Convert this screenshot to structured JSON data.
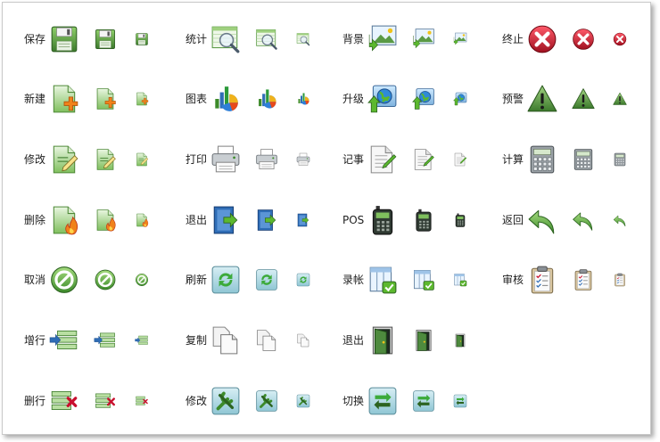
{
  "columns": [
    {
      "items": [
        {
          "label": "保存",
          "icon": "save-icon"
        },
        {
          "label": "新建",
          "icon": "new-document-icon"
        },
        {
          "label": "修改",
          "icon": "edit-document-icon"
        },
        {
          "label": "删除",
          "icon": "delete-document-icon"
        },
        {
          "label": "取消",
          "icon": "cancel-icon"
        },
        {
          "label": "增行",
          "icon": "add-row-icon"
        },
        {
          "label": "删行",
          "icon": "delete-row-icon"
        }
      ]
    },
    {
      "items": [
        {
          "label": "统计",
          "icon": "statistics-icon"
        },
        {
          "label": "图表",
          "icon": "chart-icon"
        },
        {
          "label": "打印",
          "icon": "printer-icon"
        },
        {
          "label": "退出",
          "icon": "exit-icon"
        },
        {
          "label": "刷新",
          "icon": "refresh-icon"
        },
        {
          "label": "复制",
          "icon": "copy-icon"
        },
        {
          "label": "修改",
          "icon": "tools-icon"
        }
      ]
    },
    {
      "items": [
        {
          "label": "背景",
          "icon": "background-image-icon"
        },
        {
          "label": "升级",
          "icon": "upgrade-icon"
        },
        {
          "label": "记事",
          "icon": "notes-icon"
        },
        {
          "label": "POS",
          "icon": "pos-terminal-icon"
        },
        {
          "label": "录帐",
          "icon": "record-account-icon"
        },
        {
          "label": "退出",
          "icon": "door-exit-icon"
        },
        {
          "label": "切换",
          "icon": "switch-icon"
        }
      ]
    },
    {
      "items": [
        {
          "label": "终止",
          "icon": "stop-icon"
        },
        {
          "label": "预警",
          "icon": "warning-icon"
        },
        {
          "label": "计算",
          "icon": "calculator-icon"
        },
        {
          "label": "返回",
          "icon": "back-arrow-icon"
        },
        {
          "label": "审核",
          "icon": "audit-clipboard-icon"
        }
      ]
    }
  ],
  "colors": {
    "green_dark": "#3c7a2c",
    "green_light": "#b9dfa2",
    "orange": "#f0821a",
    "red": "#c8102e",
    "blue": "#2f6db6"
  }
}
